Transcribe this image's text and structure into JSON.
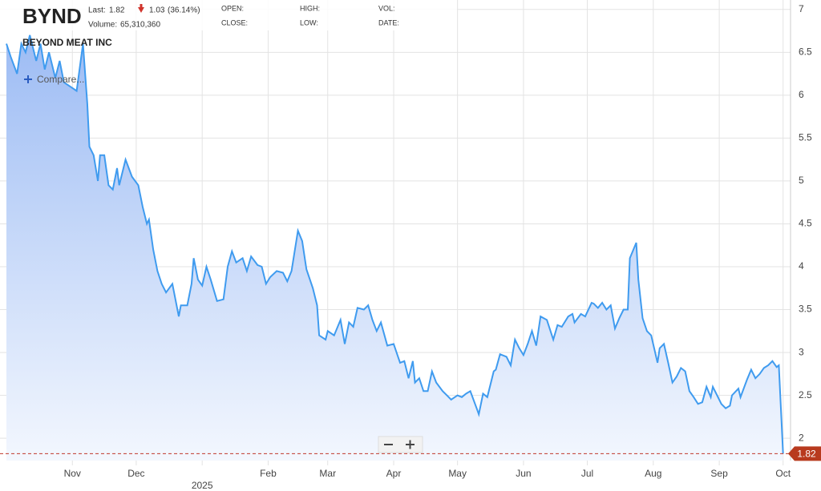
{
  "chart_data": {
    "type": "area",
    "header": {
      "ticker": "BYND",
      "company": "BEYOND MEAT INC",
      "last_label": "Last:",
      "last": 1.82,
      "change": 1.03,
      "change_pct": {
        "value": 36.14,
        "label": "(36.14%)"
      },
      "volume_label": "Volume:",
      "volume": {
        "value": 65310360,
        "label": "65,310,360"
      },
      "fields": [
        "OPEN:",
        "CLOSE:",
        "HIGH:",
        "LOW:",
        "VOL:",
        "DATE:"
      ],
      "compare": "Compare..."
    },
    "series": [
      {
        "color": "#3f9bef",
        "x": [
          0,
          2,
          5,
          7,
          9,
          11,
          14,
          16,
          18,
          20,
          23,
          25,
          27,
          30,
          33,
          36,
          38,
          39,
          41,
          43,
          44,
          46,
          48,
          50,
          52,
          53,
          56,
          59,
          62,
          64,
          66,
          67,
          69,
          71,
          73,
          75,
          78,
          81,
          82,
          85,
          87,
          88,
          90,
          92,
          94,
          96,
          99,
          102,
          104,
          106,
          108,
          111,
          113,
          115,
          118,
          120,
          122,
          124,
          127,
          130,
          132,
          134,
          137,
          139,
          141,
          144,
          146,
          147,
          150,
          151,
          154,
          157,
          159,
          161,
          163,
          165,
          168,
          170,
          172,
          174,
          176,
          179,
          182,
          185,
          187,
          189,
          191,
          192,
          194,
          196,
          198,
          200,
          202,
          205,
          207,
          209,
          212,
          214,
          216,
          218,
          221,
          222,
          224,
          226,
          229,
          230,
          232,
          235,
          237,
          239,
          241,
          243,
          245,
          247,
          249,
          251,
          254,
          257,
          259,
          261,
          264,
          266,
          267,
          270,
          272,
          275,
          276,
          278,
          280,
          282,
          284,
          286,
          288,
          290,
          292,
          293,
          295,
          296,
          297,
          299,
          301,
          303,
          306,
          307,
          309,
          311,
          313,
          315,
          317,
          319,
          321,
          323,
          325,
          327,
          329,
          331,
          332,
          334,
          336,
          338,
          340,
          341,
          344,
          345,
          348,
          350,
          352,
          354,
          356,
          358,
          360,
          362,
          363,
          365
        ],
        "values": [
          6.6,
          6.45,
          6.25,
          6.6,
          6.5,
          6.7,
          6.4,
          6.6,
          6.3,
          6.5,
          6.2,
          6.4,
          6.15,
          6.1,
          6.05,
          6.6,
          5.9,
          5.4,
          5.3,
          5.0,
          5.3,
          5.3,
          4.95,
          4.9,
          5.15,
          4.95,
          5.25,
          5.05,
          4.95,
          4.7,
          4.5,
          4.55,
          4.2,
          3.95,
          3.8,
          3.7,
          3.8,
          3.42,
          3.55,
          3.55,
          3.8,
          4.1,
          3.85,
          3.78,
          4.0,
          3.85,
          3.6,
          3.62,
          4.0,
          4.18,
          4.05,
          4.1,
          3.95,
          4.12,
          4.02,
          4.0,
          3.8,
          3.88,
          3.95,
          3.93,
          3.83,
          3.95,
          4.42,
          4.3,
          3.97,
          3.75,
          3.55,
          3.2,
          3.15,
          3.25,
          3.2,
          3.38,
          3.1,
          3.35,
          3.3,
          3.52,
          3.5,
          3.55,
          3.38,
          3.25,
          3.35,
          3.08,
          3.1,
          2.88,
          2.9,
          2.7,
          2.9,
          2.65,
          2.7,
          2.55,
          2.55,
          2.78,
          2.65,
          2.55,
          2.5,
          2.45,
          2.5,
          2.48,
          2.52,
          2.55,
          2.35,
          2.28,
          2.52,
          2.48,
          2.78,
          2.8,
          2.98,
          2.95,
          2.85,
          3.15,
          3.05,
          2.97,
          3.1,
          3.25,
          3.08,
          3.42,
          3.38,
          3.15,
          3.32,
          3.3,
          3.42,
          3.45,
          3.35,
          3.45,
          3.42,
          3.58,
          3.57,
          3.52,
          3.58,
          3.5,
          3.55,
          3.28,
          3.4,
          3.5,
          3.5,
          4.1,
          4.22,
          4.28,
          3.85,
          3.4,
          3.25,
          3.2,
          2.88,
          3.05,
          3.1,
          2.88,
          2.65,
          2.72,
          2.82,
          2.78,
          2.55,
          2.48,
          2.4,
          2.42,
          2.6,
          2.48,
          2.6,
          2.5,
          2.4,
          2.35,
          2.38,
          2.5,
          2.58,
          2.48,
          2.68,
          2.8,
          2.7,
          2.75,
          2.82,
          2.85,
          2.9,
          2.83,
          2.85,
          1.82
        ]
      }
    ],
    "xlim": [
      0,
      368.5
    ],
    "xticks": [
      {
        "value": 31,
        "label": "Nov"
      },
      {
        "value": 61,
        "label": "Dec"
      },
      {
        "value": 92,
        "label": "2025"
      },
      {
        "value": 123,
        "label": "Feb"
      },
      {
        "value": 151,
        "label": "Mar"
      },
      {
        "value": 182,
        "label": "Apr"
      },
      {
        "value": 212,
        "label": "May"
      },
      {
        "value": 243,
        "label": "Jun"
      },
      {
        "value": 273,
        "label": "Jul"
      },
      {
        "value": 304,
        "label": "Aug"
      },
      {
        "value": 335,
        "label": "Sep"
      },
      {
        "value": 365,
        "label": "Oct"
      }
    ],
    "ylim": [
      1.74,
      7.11
    ],
    "yticks": [
      2,
      2.5,
      3,
      3.5,
      4,
      4.5,
      5,
      5.5,
      6,
      6.5,
      7
    ],
    "grid": true
  }
}
